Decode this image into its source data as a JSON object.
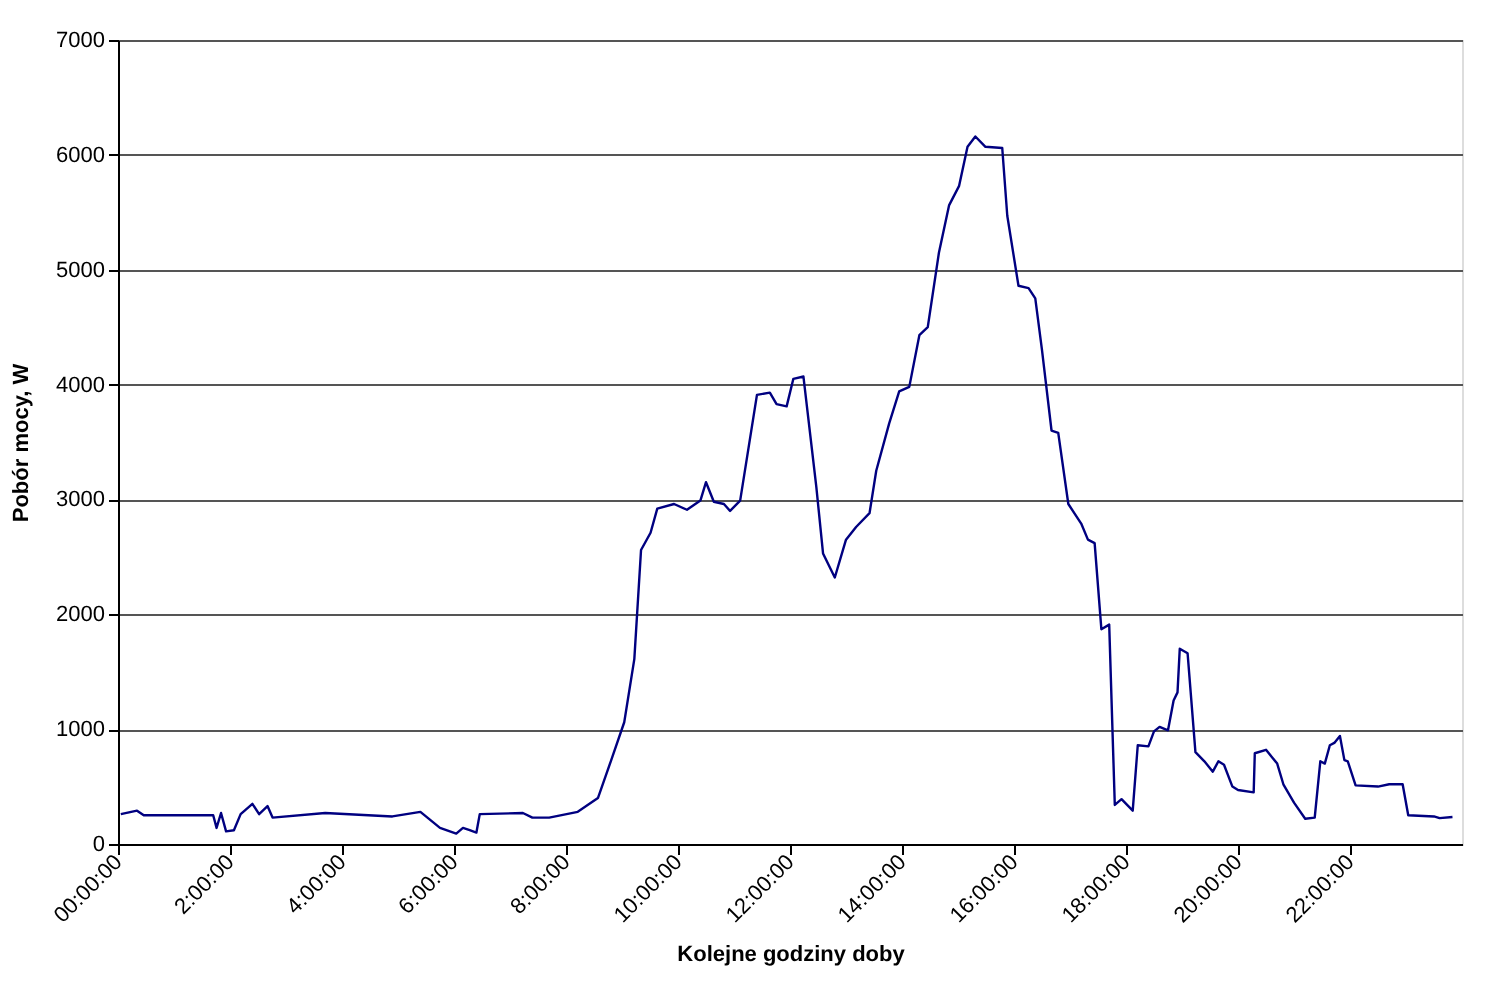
{
  "chart_data": {
    "type": "line",
    "xlabel": "Kolejne godziny doby",
    "ylabel": "Pobór mocy, W",
    "xlim": [
      0,
      24
    ],
    "ylim": [
      0,
      7000
    ],
    "xticks": [
      {
        "value": 0,
        "label": "00:00:00"
      },
      {
        "value": 2,
        "label": "2:00:00"
      },
      {
        "value": 4,
        "label": "4:00:00"
      },
      {
        "value": 6,
        "label": "6:00:00"
      },
      {
        "value": 8,
        "label": "8:00:00"
      },
      {
        "value": 10,
        "label": "10:00:00"
      },
      {
        "value": 12,
        "label": "12:00:00"
      },
      {
        "value": 14,
        "label": "14:00:00"
      },
      {
        "value": 16,
        "label": "16:00:00"
      },
      {
        "value": 18,
        "label": "18:00:00"
      },
      {
        "value": 20,
        "label": "20:00:00"
      },
      {
        "value": 22,
        "label": "22:00:00"
      }
    ],
    "yticks": [
      0,
      1000,
      2000,
      3000,
      4000,
      5000,
      6000,
      7000
    ],
    "grid": "y",
    "legend": false,
    "marker": "none",
    "line_style": "solid",
    "series": [
      {
        "color": "#000080",
        "x": [
          0.05,
          0.34,
          0.46,
          1.0,
          1.7,
          1.76,
          1.84,
          1.93,
          2.07,
          2.19,
          2.4,
          2.52,
          2.67,
          2.76,
          3.7,
          4.9,
          5.4,
          5.75,
          6.04,
          6.16,
          6.28,
          6.4,
          6.46,
          7.23,
          7.4,
          7.7,
          8.21,
          8.57,
          8.8,
          9.04,
          9.22,
          9.34,
          9.51,
          9.63,
          9.93,
          10.16,
          10.4,
          10.5,
          10.64,
          10.82,
          10.93,
          11.11,
          11.41,
          11.64,
          11.76,
          11.94,
          12.06,
          12.24,
          12.47,
          12.59,
          12.8,
          13.0,
          13.18,
          13.42,
          13.54,
          13.77,
          13.95,
          14.13,
          14.31,
          14.46,
          14.66,
          14.84,
          15.02,
          15.17,
          15.31,
          15.49,
          15.79,
          15.88,
          16.08,
          16.26,
          16.38,
          16.5,
          16.67,
          16.79,
          16.97,
          17.2,
          17.32,
          17.44,
          17.56,
          17.7,
          17.8,
          17.92,
          18.12,
          18.21,
          18.4,
          18.5,
          18.6,
          18.75,
          18.85,
          18.92,
          18.96,
          19.1,
          19.24,
          19.4,
          19.55,
          19.65,
          19.75,
          19.9,
          20.0,
          20.28,
          20.3,
          20.5,
          20.6,
          20.7,
          20.81,
          21.0,
          21.2,
          21.37,
          21.47,
          21.55,
          21.64,
          21.72,
          21.82,
          21.9,
          21.96,
          22.1,
          22.5,
          22.7,
          22.94,
          23.04,
          23.5,
          23.6,
          23.83
        ],
        "values": [
          260,
          290,
          250,
          250,
          250,
          140,
          270,
          110,
          120,
          260,
          350,
          260,
          330,
          230,
          270,
          240,
          280,
          140,
          90,
          140,
          120,
          100,
          260,
          270,
          230,
          230,
          280,
          400,
          720,
          1060,
          1610,
          2560,
          2710,
          2920,
          2960,
          2910,
          2990,
          3150,
          2980,
          2960,
          2900,
          2990,
          3910,
          3930,
          3830,
          3810,
          4050,
          4070,
          3110,
          2530,
          2320,
          2650,
          2760,
          2880,
          3250,
          3660,
          3940,
          3980,
          4430,
          4500,
          5150,
          5560,
          5730,
          6070,
          6160,
          6070,
          6060,
          5470,
          4860,
          4840,
          4750,
          4300,
          3600,
          3580,
          2960,
          2790,
          2650,
          2620,
          1870,
          1910,
          340,
          390,
          290,
          860,
          850,
          980,
          1020,
          990,
          1250,
          1320,
          1700,
          1660,
          800,
          720,
          630,
          720,
          690,
          500,
          470,
          450,
          790,
          820,
          760,
          700,
          520,
          360,
          220,
          230,
          720,
          700,
          860,
          880,
          940,
          730,
          720,
          510,
          500,
          520,
          520,
          250,
          240,
          225,
          235
        ]
      }
    ]
  }
}
